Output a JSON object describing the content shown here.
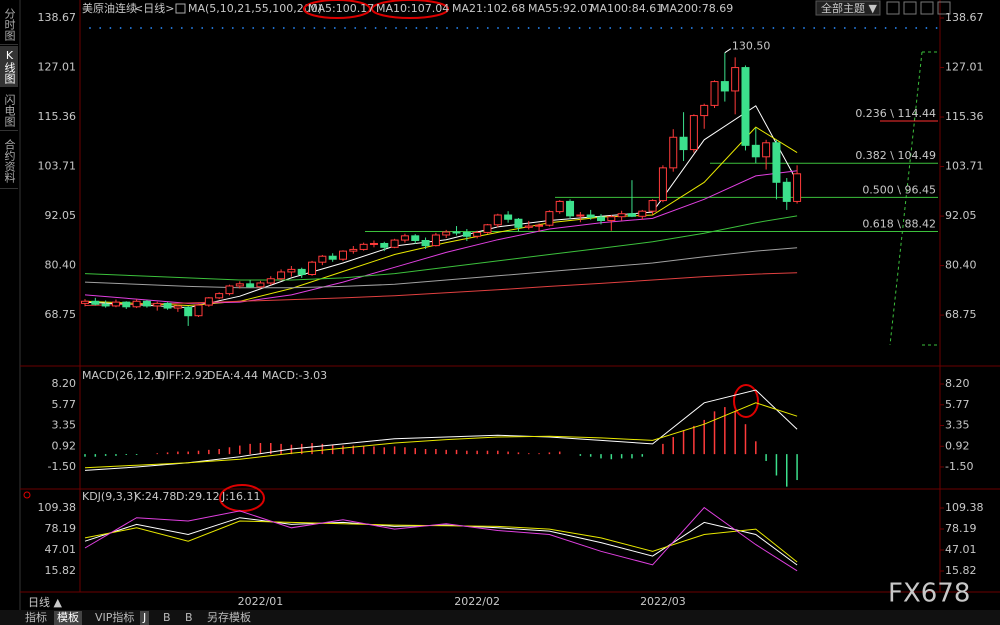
{
  "chart_data": [
    {
      "type": "candlestick",
      "title": "美原油连续",
      "subtitle": "<日线>",
      "indicator": "MA(5,10,21,55,100,200)",
      "categories": [
        null,
        null,
        null,
        null,
        null,
        null,
        null,
        null,
        null,
        null,
        null,
        null,
        null,
        null,
        null,
        null,
        null,
        "2022/01",
        null,
        null,
        null,
        null,
        null,
        null,
        null,
        null,
        null,
        null,
        null,
        null,
        null,
        null,
        null,
        null,
        null,
        null,
        null,
        null,
        "2022/02",
        null,
        null,
        null,
        null,
        null,
        null,
        null,
        null,
        null,
        null,
        null,
        null,
        null,
        null,
        null,
        null,
        null,
        "2022/03",
        null,
        null,
        null,
        null,
        null,
        null,
        null,
        null,
        null,
        null,
        null,
        null,
        null
      ],
      "open": [
        71.5,
        72.0,
        71.3,
        70.9,
        71.8,
        70.7,
        72.0,
        70.9,
        71.5,
        70.4,
        70.6,
        68.6,
        71.1,
        72.8,
        73.8,
        75.6,
        76.1,
        75.4,
        76.3,
        77.3,
        78.9,
        79.5,
        78.3,
        81.2,
        82.6,
        81.9,
        83.8,
        84.2,
        85.4,
        85.6,
        84.7,
        86.4,
        87.4,
        86.3,
        85.1,
        87.6,
        88.3,
        88.2,
        87.3,
        88.2,
        90.0,
        92.3,
        91.3,
        89.4,
        89.7,
        89.9,
        93.1,
        95.5,
        92.1,
        92.3,
        91.8,
        91.0,
        91.9,
        92.6,
        92.0,
        93.2,
        95.7,
        103.4,
        110.6,
        107.7,
        115.7,
        118.1,
        123.7,
        121.5,
        127.0,
        108.7,
        106.0,
        109.3,
        100.0,
        95.5
      ],
      "high": [
        72.5,
        72.8,
        72.2,
        72.4,
        72.0,
        72.5,
        72.3,
        71.9,
        71.8,
        71.2,
        70.9,
        71.4,
        73.0,
        74.1,
        75.9,
        76.7,
        77.0,
        76.8,
        77.9,
        79.5,
        80.3,
        79.9,
        81.5,
        82.9,
        83.3,
        84.0,
        85.0,
        85.8,
        86.3,
        86.0,
        86.7,
        87.9,
        87.8,
        87.0,
        88.1,
        88.8,
        89.7,
        89.0,
        88.6,
        90.2,
        92.6,
        93.2,
        91.6,
        90.9,
        90.3,
        93.4,
        95.8,
        96.0,
        93.0,
        93.5,
        92.5,
        92.3,
        93.3,
        100.5,
        93.5,
        96.0,
        104.0,
        112.5,
        116.5,
        116.0,
        118.5,
        124.0,
        130.5,
        129.4,
        127.5,
        112.8,
        110.0,
        110.0,
        101.0,
        104.0
      ],
      "low": [
        70.8,
        71.0,
        70.5,
        70.6,
        70.2,
        70.4,
        70.5,
        69.8,
        70.0,
        69.5,
        66.2,
        68.3,
        70.7,
        72.5,
        73.4,
        75.0,
        75.2,
        75.0,
        75.8,
        76.9,
        77.8,
        77.5,
        78.0,
        80.5,
        81.3,
        81.5,
        83.2,
        83.9,
        84.7,
        83.8,
        84.5,
        85.8,
        85.5,
        84.3,
        84.9,
        86.9,
        87.5,
        86.2,
        86.8,
        87.9,
        89.4,
        90.5,
        88.5,
        88.9,
        88.4,
        89.6,
        92.6,
        91.3,
        90.6,
        91.2,
        90.1,
        88.6,
        91.0,
        91.8,
        91.2,
        92.4,
        95.3,
        102.5,
        105.0,
        107.0,
        112.6,
        117.5,
        119.0,
        116.0,
        107.5,
        104.5,
        103.0,
        96.0,
        93.5,
        95.0
      ],
      "close": [
        72.0,
        71.3,
        70.9,
        71.8,
        70.7,
        72.0,
        70.9,
        71.5,
        70.4,
        70.9,
        68.6,
        71.1,
        72.8,
        73.8,
        75.6,
        76.1,
        75.4,
        76.3,
        77.3,
        78.9,
        79.5,
        78.3,
        81.2,
        82.6,
        81.9,
        83.8,
        84.2,
        85.4,
        85.6,
        84.7,
        86.4,
        87.4,
        86.3,
        85.1,
        87.6,
        88.3,
        88.2,
        87.3,
        88.2,
        90.0,
        92.3,
        91.3,
        89.4,
        89.7,
        89.9,
        93.1,
        95.5,
        92.1,
        92.3,
        91.8,
        91.0,
        91.9,
        92.6,
        92.0,
        93.2,
        95.7,
        103.4,
        110.6,
        107.7,
        115.7,
        118.1,
        123.7,
        121.5,
        127.0,
        108.7,
        106.0,
        109.3,
        100.0,
        95.5,
        102.0
      ],
      "up_color": "#ff3b3b",
      "down_color": "#3ce08c",
      "ylim": [
        57.0,
        140.55
      ],
      "yticks": [
        138.67,
        127.01,
        115.36,
        103.71,
        92.05,
        {
          "value": 80.4,
          "label": "80.40"
        },
        68.75
      ],
      "series": [
        {
          "name": "MA5:100.17",
          "color": "#ffffff",
          "x": [
            0,
            5,
            10,
            15,
            20,
            25,
            30,
            35,
            40,
            45,
            50,
            55,
            60,
            65,
            69
          ],
          "values": [
            71.8,
            71.2,
            70.5,
            73.2,
            77.5,
            81.0,
            85.0,
            86.5,
            89.5,
            91.0,
            92.0,
            93.0,
            110.0,
            118.0,
            100.2
          ]
        },
        {
          "name": "MA10:107.04",
          "color": "#e8e800",
          "x": [
            0,
            5,
            10,
            15,
            20,
            25,
            30,
            35,
            40,
            45,
            50,
            55,
            60,
            65,
            69
          ],
          "values": [
            72.0,
            71.5,
            71.0,
            72.0,
            75.0,
            79.0,
            83.0,
            85.8,
            88.2,
            90.5,
            91.8,
            92.3,
            100.0,
            113.0,
            107.0
          ]
        },
        {
          "name": "MA21:102.68",
          "color": "#e040e0",
          "x": [
            0,
            5,
            10,
            15,
            20,
            25,
            30,
            35,
            40,
            45,
            50,
            55,
            60,
            65,
            69
          ],
          "values": [
            73.5,
            72.5,
            71.5,
            71.8,
            73.5,
            76.5,
            80.0,
            83.5,
            86.5,
            89.0,
            90.5,
            91.5,
            96.0,
            101.5,
            102.7
          ]
        },
        {
          "name": "MA55:92.07",
          "color": "#3cc03c",
          "x": [
            0,
            5,
            10,
            15,
            20,
            25,
            30,
            35,
            40,
            45,
            50,
            55,
            60,
            65,
            69
          ],
          "values": [
            78.5,
            78.0,
            77.5,
            77.0,
            77.0,
            77.5,
            78.5,
            80.0,
            81.5,
            83.0,
            84.5,
            86.0,
            88.0,
            90.5,
            92.1
          ]
        },
        {
          "name": "MA100:84.61",
          "color": "#a0a0a0",
          "x": [
            0,
            5,
            10,
            15,
            20,
            25,
            30,
            35,
            40,
            45,
            50,
            55,
            60,
            65,
            69
          ],
          "values": [
            76.5,
            76.0,
            75.5,
            75.2,
            75.2,
            75.5,
            76.0,
            77.0,
            78.0,
            79.0,
            80.0,
            81.0,
            82.5,
            83.8,
            84.6
          ]
        },
        {
          "name": "MA200:78.69",
          "color": "#e04040",
          "x": [
            0,
            5,
            10,
            15,
            20,
            25,
            30,
            35,
            40,
            45,
            50,
            55,
            60,
            65,
            69
          ],
          "values": [
            71.0,
            71.3,
            71.6,
            72.0,
            72.4,
            72.8,
            73.3,
            74.0,
            74.7,
            75.5,
            76.2,
            77.0,
            77.8,
            78.4,
            78.7
          ]
        }
      ],
      "high_label": {
        "value": 130.5,
        "label": "130.50"
      },
      "annotations": [
        {
          "value": 114.44,
          "label": "0.236 \\ 114.44",
          "color": "#ff3030"
        },
        {
          "value": 104.49,
          "label": "0.382 \\ 104.49",
          "color": "#3cc03c"
        },
        {
          "value": 96.45,
          "label": "0.500 \\ 96.45",
          "color": "#3cc03c"
        },
        {
          "value": 88.42,
          "label": "0.618 \\ 88.42",
          "color": "#3cc03c"
        }
      ]
    },
    {
      "type": "macd",
      "title": "MACD(26,12,9)",
      "ylim": [
        -3.96,
        10.07
      ],
      "yticks": [
        {
          "value": 8.2,
          "label": "8.20"
        },
        5.77,
        3.35,
        0.92,
        {
          "value": -1.5,
          "label": "-1.50"
        }
      ],
      "histogram": {
        "name": "MACD:-3.03",
        "color": "#e040e0",
        "up_color": "#ff3b3b",
        "down_color": "#3ce08c",
        "values": [
          -0.3,
          -0.3,
          -0.2,
          -0.2,
          -0.1,
          -0.1,
          0,
          0.1,
          0.2,
          0.3,
          0.3,
          0.4,
          0.5,
          0.6,
          0.8,
          1.0,
          1.2,
          1.3,
          1.3,
          1.2,
          1.1,
          1.2,
          1.3,
          1.2,
          1.1,
          1.0,
          1.0,
          0.9,
          0.9,
          0.8,
          0.9,
          0.8,
          0.7,
          0.6,
          0.6,
          0.5,
          0.5,
          0.4,
          0.4,
          0.4,
          0.4,
          0.3,
          0.2,
          0.1,
          0.1,
          0.2,
          0.3,
          0,
          -0.2,
          -0.3,
          -0.5,
          -0.6,
          -0.5,
          -0.5,
          -0.3,
          0,
          1.2,
          2.0,
          2.8,
          3.3,
          4.0,
          5.0,
          5.5,
          5.0,
          3.5,
          1.5,
          -0.8,
          -2.5,
          -3.8,
          -3.03
        ]
      },
      "series": [
        {
          "name": "DIFF:2.92",
          "color": "#ffffff",
          "x": [
            0,
            5,
            10,
            15,
            20,
            25,
            30,
            35,
            40,
            45,
            50,
            55,
            60,
            65,
            69
          ],
          "values": [
            -1.9,
            -1.5,
            -1.0,
            -0.3,
            0.6,
            1.2,
            1.8,
            2.0,
            2.2,
            2.0,
            1.6,
            1.2,
            6.0,
            7.5,
            2.92
          ]
        },
        {
          "name": "DEA:4.44",
          "color": "#e8e800",
          "x": [
            0,
            5,
            10,
            15,
            20,
            25,
            30,
            35,
            40,
            45,
            50,
            55,
            60,
            65,
            69
          ],
          "values": [
            -1.6,
            -1.3,
            -1.0,
            -0.6,
            0.1,
            0.7,
            1.3,
            1.7,
            2.0,
            2.1,
            1.9,
            1.6,
            3.5,
            6.0,
            4.44
          ]
        }
      ]
    },
    {
      "type": "kdj",
      "title": "KDJ(9,3,3)",
      "ylim": [
        -15.37,
        136.1
      ],
      "yticks": [
        109.38,
        78.19,
        47.01,
        15.82
      ],
      "series": [
        {
          "name": "K:24.78",
          "color": "#ffffff",
          "x": [
            0,
            5,
            10,
            15,
            20,
            25,
            30,
            35,
            40,
            45,
            50,
            55,
            60,
            65,
            69
          ],
          "values": [
            60,
            85,
            70,
            95,
            85,
            88,
            82,
            84,
            80,
            75,
            58,
            38,
            88,
            70,
            24.78
          ]
        },
        {
          "name": "D:29.12",
          "color": "#e8e800",
          "x": [
            0,
            5,
            10,
            15,
            20,
            25,
            30,
            35,
            40,
            45,
            50,
            55,
            60,
            65,
            69
          ],
          "values": [
            65,
            80,
            60,
            90,
            88,
            86,
            84,
            83,
            82,
            78,
            65,
            45,
            70,
            78,
            29.12
          ]
        },
        {
          "name": "J:16.11",
          "color": "#e040e0",
          "x": [
            0,
            5,
            10,
            15,
            20,
            25,
            30,
            35,
            40,
            45,
            50,
            55,
            60,
            65,
            69
          ],
          "values": [
            50,
            95,
            90,
            105,
            80,
            92,
            78,
            86,
            76,
            70,
            45,
            25,
            110,
            55,
            16.11
          ]
        }
      ]
    }
  ],
  "ui": {
    "sidebar": [
      "分时图",
      "K线图",
      "闪电图",
      "合约资料"
    ],
    "theme": "全部主题 ▼",
    "bottom": {
      "period": "日线 ▲",
      "tabs": [
        "指标",
        "模板",
        "VIP指标",
        "J",
        "B",
        "B",
        "另存模板"
      ]
    },
    "watermark": "FX678"
  }
}
